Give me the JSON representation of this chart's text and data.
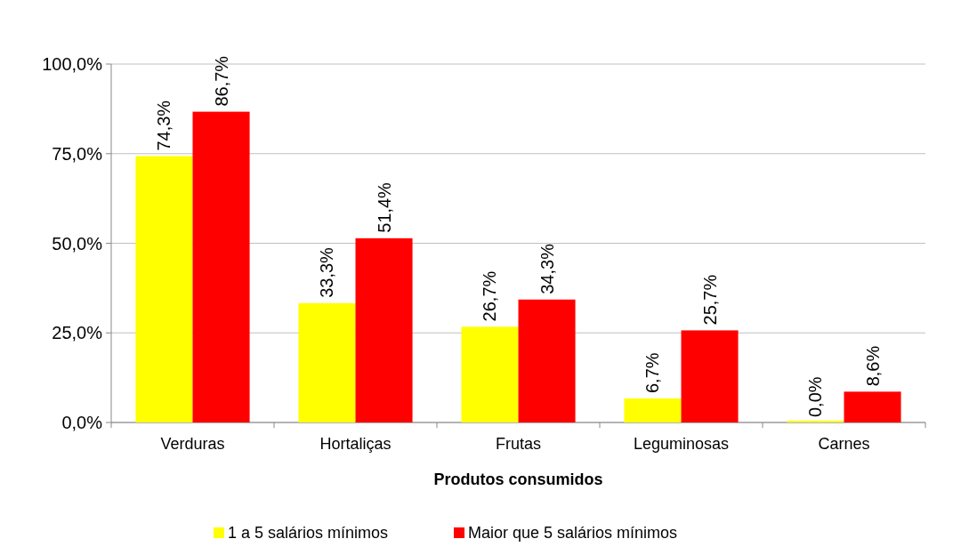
{
  "chart_data": {
    "type": "bar",
    "xlabel": "Produtos consumidos",
    "categories": [
      "Verduras",
      "Hortaliças",
      "Frutas",
      "Leguminosas",
      "Carnes"
    ],
    "series": [
      {
        "name": "1 a 5 salários mínimos",
        "color": "#ffff00",
        "values": [
          74.3,
          33.3,
          26.7,
          6.7,
          0.0
        ],
        "value_labels": [
          "74,3%",
          "33,3%",
          "26,7%",
          "6,7%",
          "0,0%"
        ]
      },
      {
        "name": "Maior que 5 salários mínimos",
        "color": "#ff0000",
        "values": [
          86.7,
          51.4,
          34.3,
          25.7,
          8.6
        ],
        "value_labels": [
          "86,7%",
          "51,4%",
          "34,3%",
          "25,7%",
          "8,6%"
        ]
      }
    ],
    "ylim": [
      0,
      100
    ],
    "yticks": [
      {
        "value": 0,
        "label": "0,0%"
      },
      {
        "value": 25,
        "label": "25,0%"
      },
      {
        "value": 50,
        "label": "50,0%"
      },
      {
        "value": 75,
        "label": "75,0%"
      },
      {
        "value": 100,
        "label": "100,0%"
      }
    ],
    "grid": "y",
    "legend": "bottom"
  }
}
